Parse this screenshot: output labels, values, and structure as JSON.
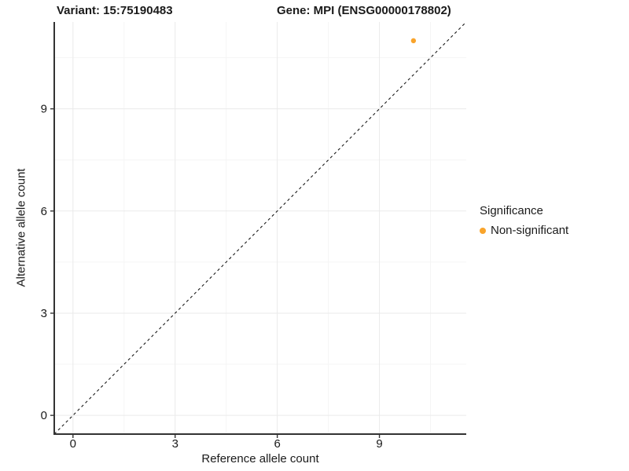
{
  "chart_data": {
    "type": "scatter",
    "title_left": "Variant: 15:75190483",
    "title_right": "Gene: MPI (ENSG00000178802)",
    "xlabel": "Reference allele count",
    "ylabel": "Alternative allele count",
    "xlim": [
      -0.55,
      11.55
    ],
    "ylim": [
      -0.55,
      11.55
    ],
    "x_ticks": [
      0,
      3,
      6,
      9
    ],
    "y_ticks": [
      0,
      3,
      6,
      9
    ],
    "x_minor_ticks": [
      1.5,
      4.5,
      7.5,
      10.5
    ],
    "y_minor_ticks": [
      1.5,
      4.5,
      7.5,
      10.5
    ],
    "grid": true,
    "legend_position": "right",
    "series": [
      {
        "name": "Non-significant",
        "color": "#F9A42B",
        "point_radius": 3.2,
        "points": [
          {
            "x": 10,
            "y": 11
          }
        ]
      }
    ],
    "reference_line": {
      "type": "identity y=x",
      "style": "dashed",
      "color": "#1A1A1A"
    },
    "colors": {
      "grid_major": "#EAEAEA",
      "grid_minor": "#F5F5F5",
      "axis": "#333333",
      "text": "#1A1A1A",
      "background": "#FFFFFF"
    }
  },
  "legend": {
    "title": "Significance",
    "items": [
      {
        "label": "Non-significant",
        "color": "#F9A42B"
      }
    ]
  }
}
